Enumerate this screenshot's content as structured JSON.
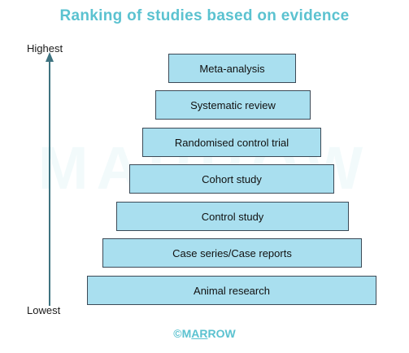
{
  "title": "Ranking of studies based on evidence",
  "watermark": "MARROW",
  "axis": {
    "top_label": "Highest",
    "bottom_label": "Lowest"
  },
  "levels": [
    {
      "label": "Meta-analysis"
    },
    {
      "label": "Systematic review"
    },
    {
      "label": "Randomised control trial"
    },
    {
      "label": "Cohort study"
    },
    {
      "label": "Control study"
    },
    {
      "label": "Case series/Case reports"
    },
    {
      "label": "Animal research"
    }
  ],
  "footer": {
    "copyright": "©",
    "brand_first": "M",
    "brand_underlined": "AR",
    "brand_rest": "ROW"
  },
  "colors": {
    "title": "#5bc2d0",
    "box_fill": "#a9dfef",
    "box_border": "#3c4a57",
    "arrow": "#3e7380",
    "footer": "#5bc2d0",
    "watermark": "#5bc2d0"
  }
}
